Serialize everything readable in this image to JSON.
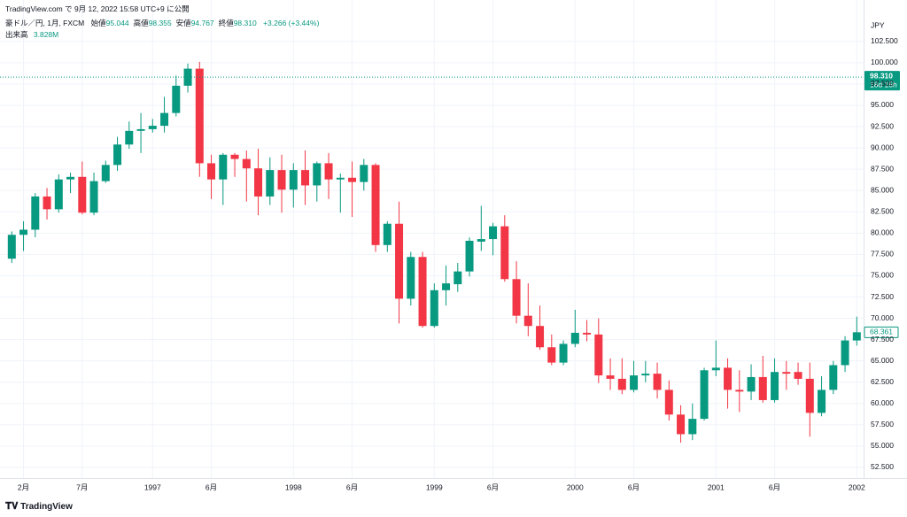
{
  "header": {
    "published": "TradingView.com で 9月 12, 2022 15:58 UTC+9 に公開",
    "symbol": "豪ドル／円, 1月, FXCM",
    "ohlc": [
      {
        "label": "始値",
        "value": "95.044"
      },
      {
        "label": "高値",
        "value": "98.355"
      },
      {
        "label": "安値",
        "value": "94.767"
      },
      {
        "label": "終値",
        "value": "98.310"
      }
    ],
    "change": "+3.266 (+3.44%)",
    "volume_label": "出来高",
    "volume": "3.828M",
    "currency": "JPY"
  },
  "footer": {
    "logo": "TradingView"
  },
  "chart_data": {
    "type": "candlestick",
    "categories": [
      null,
      "2月",
      null,
      null,
      null,
      null,
      "7月",
      null,
      null,
      null,
      null,
      null,
      "1997",
      null,
      null,
      null,
      null,
      "6月",
      null,
      null,
      null,
      null,
      null,
      null,
      "1998",
      null,
      null,
      null,
      null,
      "6月",
      null,
      null,
      null,
      null,
      null,
      null,
      "1999",
      null,
      null,
      null,
      null,
      "6月",
      null,
      null,
      null,
      null,
      null,
      null,
      "2000",
      null,
      null,
      null,
      null,
      "6月",
      null,
      null,
      null,
      null,
      null,
      null,
      "2001",
      null,
      null,
      null,
      null,
      "6月",
      null,
      null,
      null,
      null,
      null,
      null,
      "2002"
    ],
    "open": [
      77.0,
      79.8,
      80.4,
      84.3,
      82.8,
      86.3,
      86.6,
      82.4,
      86.1,
      88.0,
      90.4,
      92.0,
      92.2,
      92.6,
      94.1,
      97.3,
      99.3,
      88.2,
      86.3,
      89.2,
      88.7,
      87.6,
      84.3,
      87.4,
      85.1,
      87.4,
      85.6,
      88.2,
      86.3,
      86.5,
      86.0,
      88.0,
      78.6,
      81.1,
      72.3,
      77.2,
      69.1,
      73.3,
      74.0,
      75.5,
      79.0,
      79.3,
      80.8,
      74.6,
      70.3,
      69.1,
      66.6,
      64.8,
      67.0,
      68.3,
      68.1,
      63.3,
      62.9,
      61.6,
      63.3,
      63.5,
      61.6,
      58.7,
      56.4,
      58.2,
      63.9,
      64.2,
      61.6,
      61.4,
      63.1,
      60.4,
      63.7,
      63.7,
      62.9,
      58.9,
      61.6,
      64.5,
      67.4
    ],
    "high": [
      80.2,
      81.4,
      84.7,
      85.3,
      86.9,
      87.1,
      88.4,
      87.1,
      88.5,
      91.3,
      93.1,
      94.1,
      93.4,
      96.0,
      98.5,
      99.9,
      100.1,
      89.2,
      89.4,
      89.4,
      89.7,
      89.9,
      88.9,
      89.2,
      88.2,
      89.7,
      88.4,
      89.4,
      87.0,
      88.4,
      88.7,
      88.2,
      81.4,
      83.7,
      77.8,
      77.8,
      74.1,
      76.2,
      76.5,
      79.5,
      83.2,
      81.2,
      82.1,
      76.7,
      74.1,
      71.5,
      68.1,
      67.4,
      71.0,
      69.8,
      70.0,
      65.3,
      65.3,
      65.0,
      65.0,
      64.8,
      62.7,
      59.8,
      60.0,
      64.2,
      67.4,
      65.3,
      63.9,
      64.6,
      65.6,
      65.3,
      65.0,
      64.8,
      64.8,
      63.2,
      65.0,
      67.9,
      70.2
    ],
    "low": [
      76.5,
      77.9,
      79.5,
      81.6,
      82.4,
      84.7,
      82.2,
      82.1,
      85.9,
      87.3,
      89.9,
      89.4,
      91.8,
      91.8,
      93.7,
      96.5,
      86.6,
      84.0,
      83.3,
      86.6,
      83.7,
      82.1,
      83.3,
      82.4,
      83.0,
      83.3,
      83.7,
      84.0,
      82.4,
      81.9,
      85.0,
      77.8,
      77.8,
      69.4,
      71.5,
      68.9,
      68.9,
      71.5,
      73.1,
      74.9,
      77.9,
      77.4,
      74.3,
      69.4,
      67.9,
      66.3,
      64.5,
      64.5,
      66.6,
      67.3,
      62.4,
      61.6,
      61.1,
      61.3,
      62.5,
      60.6,
      58.0,
      55.4,
      55.7,
      58.0,
      63.2,
      59.4,
      59.0,
      60.4,
      60.1,
      60.1,
      61.6,
      62.2,
      56.1,
      58.5,
      61.1,
      63.7,
      66.8
    ],
    "close": [
      79.8,
      80.4,
      84.3,
      82.8,
      86.3,
      86.6,
      82.4,
      86.1,
      88.0,
      90.4,
      92.0,
      92.2,
      92.6,
      94.1,
      97.3,
      99.3,
      88.2,
      86.3,
      89.2,
      88.7,
      87.6,
      84.3,
      87.4,
      85.1,
      87.4,
      85.6,
      88.2,
      86.3,
      86.5,
      86.0,
      88.0,
      78.6,
      81.1,
      72.3,
      77.2,
      69.1,
      73.3,
      74.1,
      75.5,
      79.1,
      79.3,
      80.8,
      74.6,
      70.3,
      69.1,
      66.6,
      64.8,
      67.0,
      68.3,
      68.1,
      63.3,
      62.9,
      61.6,
      63.3,
      63.5,
      61.6,
      58.7,
      56.4,
      58.2,
      63.9,
      64.2,
      61.6,
      61.4,
      63.1,
      60.4,
      63.7,
      63.5,
      62.9,
      58.9,
      61.6,
      64.5,
      67.4,
      68.361
    ],
    "up_color": "#089981",
    "down_color": "#f23645",
    "ylim": [
      51.25,
      105.7
    ],
    "yticks": [
      {
        "value": 52.5,
        "label": "52.500"
      },
      {
        "value": 55,
        "label": "55.000"
      },
      {
        "value": 57.5,
        "label": "57.500"
      },
      {
        "value": 60,
        "label": "60.000"
      },
      {
        "value": 62.5,
        "label": "62.500"
      },
      {
        "value": 65,
        "label": "65.000"
      },
      {
        "value": 67.5,
        "label": "67.500"
      },
      {
        "value": 70,
        "label": "70.000"
      },
      {
        "value": 72.5,
        "label": "72.500"
      },
      {
        "value": 75,
        "label": "75.000"
      },
      {
        "value": 77.5,
        "label": "77.500"
      },
      {
        "value": 80,
        "label": "80.000"
      },
      {
        "value": 82.5,
        "label": "82.500"
      },
      {
        "value": 85,
        "label": "85.000"
      },
      {
        "value": 87.5,
        "label": "87.500"
      },
      {
        "value": 90,
        "label": "90.000"
      },
      {
        "value": 92.5,
        "label": "92.500"
      },
      {
        "value": 95,
        "label": "95.000"
      },
      {
        "value": 97.5,
        "label": "97.500"
      },
      {
        "value": 100,
        "label": "100.000"
      },
      {
        "value": 102.5,
        "label": "102.500"
      }
    ],
    "grid": true,
    "last_price": {
      "value": 98.31,
      "label": "98.310",
      "countdown": "18d 15h"
    },
    "close_tag": {
      "value": 68.361,
      "label": "68.361"
    }
  }
}
